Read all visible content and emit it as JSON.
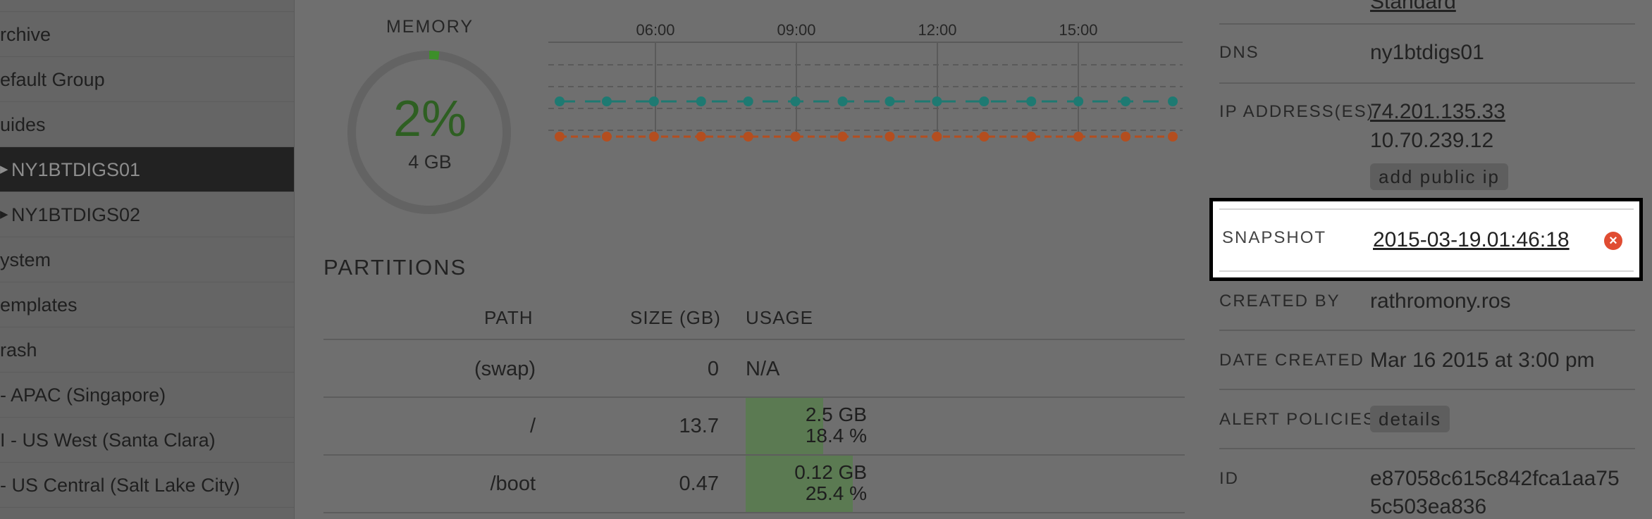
{
  "sidebar": {
    "items": [
      {
        "label": "",
        "active": false
      },
      {
        "label": "rchive",
        "active": false
      },
      {
        "label": "efault Group",
        "active": false
      },
      {
        "label": "uides",
        "active": false
      },
      {
        "label": "NY1BTDIGS01",
        "active": true,
        "caret": "▶"
      },
      {
        "label": "NY1BTDIGS02",
        "active": false,
        "caret": "▶"
      },
      {
        "label": "ystem",
        "active": false
      },
      {
        "label": "emplates",
        "active": false
      },
      {
        "label": "rash",
        "active": false
      },
      {
        "label": " - APAC (Singapore)",
        "active": false
      },
      {
        "label": "I - US West (Santa Clara)",
        "active": false
      },
      {
        "label": " - US Central (Salt Lake City)",
        "active": false
      }
    ]
  },
  "memory": {
    "label": "MEMORY",
    "percent_text": "2%",
    "percent_value": 0.02,
    "size": "4 GB",
    "accent": "#3d8f2a"
  },
  "timeline": {
    "time_labels": [
      "06:00",
      "09:00",
      "12:00",
      "15:00"
    ],
    "series_colors": [
      "#1e7a72",
      "#b44e1f"
    ]
  },
  "partitions": {
    "title": "PARTITIONS",
    "columns": [
      "PATH",
      "SIZE (GB)",
      "USAGE"
    ],
    "rows": [
      {
        "path": "(swap)",
        "size": "0",
        "usage_na": "N/A"
      },
      {
        "path": "/",
        "size": "13.7",
        "used": "2.5 GB",
        "pct": "18.4 %",
        "fraction": 0.184
      },
      {
        "path": "/boot",
        "size": "0.47",
        "used": "0.12 GB",
        "pct": "25.4 %",
        "fraction": 0.254
      }
    ]
  },
  "details": {
    "top_link": "Standard",
    "dns_label": "DNS",
    "dns_value": "ny1btdigs01",
    "ip_label": "IP ADDRESS(ES)",
    "ip_public": "74.201.135.33",
    "ip_private": "10.70.239.12",
    "add_ip_label": "add public ip",
    "snapshot_label": "SNAPSHOT",
    "snapshot_value": "2015-03-19.01:46:18",
    "snapshot_delete_icon": "close-circle-icon",
    "created_by_label": "CREATED BY",
    "created_by_value": "rathromony.ros",
    "date_created_label": "DATE CREATED",
    "date_created_value": "Mar 16 2015 at 3:00 pm",
    "alert_label": "ALERT POLICIES",
    "alert_details_label": "details",
    "id_label": "ID",
    "id_line1": "e87058c615c842fca1aa75",
    "id_line2": "5c503ea836"
  }
}
